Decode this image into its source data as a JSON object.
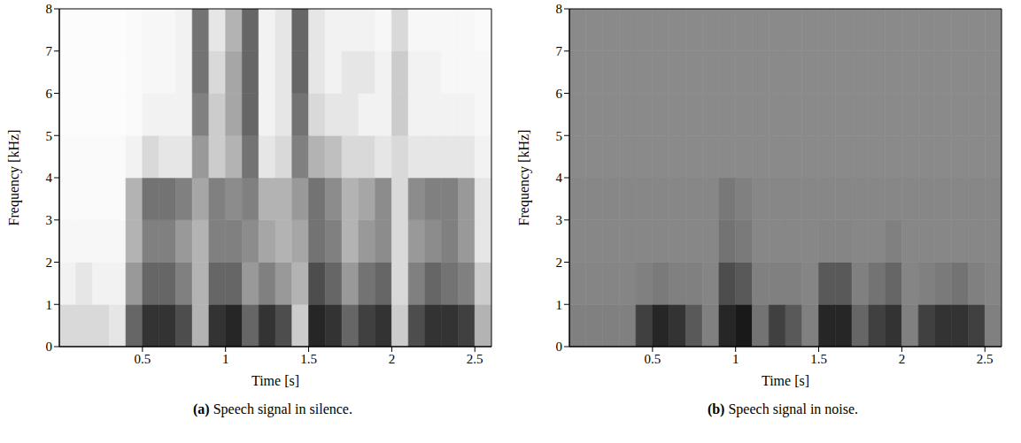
{
  "chart_data": [
    {
      "type": "heatmap",
      "label": "(a)",
      "title": "Speech signal in silence.",
      "x_label": "Time [s]",
      "y_label": "Frequency [kHz]",
      "xlim": [
        0,
        2.6
      ],
      "ylim": [
        0,
        8
      ],
      "xticks": [
        0.5,
        1,
        1.5,
        2,
        2.5
      ],
      "yticks": [
        0,
        1,
        2,
        3,
        4,
        5,
        6,
        7,
        8
      ],
      "x_bins": [
        0,
        0.1,
        0.2,
        0.3,
        0.4,
        0.5,
        0.6,
        0.7,
        0.8,
        0.9,
        1,
        1.1,
        1.2,
        1.3,
        1.4,
        1.5,
        1.6,
        1.7,
        1.8,
        1.9,
        2,
        2.1,
        2.2,
        2.3,
        2.4,
        2.5,
        2.6
      ],
      "y_bins": [
        0,
        1,
        2,
        3,
        4,
        5,
        6,
        7,
        8
      ],
      "cell_range": [
        0,
        1
      ],
      "color": "gray",
      "cells": [
        [
          0.15,
          0.15,
          0.15,
          0.1,
          0.6,
          0.8,
          0.8,
          0.7,
          0.3,
          0.8,
          0.85,
          0.6,
          0.8,
          0.7,
          0.2,
          0.85,
          0.8,
          0.6,
          0.75,
          0.8,
          0.2,
          0.7,
          0.8,
          0.8,
          0.75,
          0.3
        ],
        [
          0.05,
          0.1,
          0.05,
          0.05,
          0.4,
          0.6,
          0.6,
          0.5,
          0.3,
          0.6,
          0.6,
          0.4,
          0.5,
          0.4,
          0.3,
          0.7,
          0.6,
          0.4,
          0.55,
          0.6,
          0.15,
          0.5,
          0.6,
          0.55,
          0.5,
          0.2
        ],
        [
          0.03,
          0.03,
          0.03,
          0.03,
          0.3,
          0.5,
          0.5,
          0.4,
          0.3,
          0.5,
          0.5,
          0.45,
          0.35,
          0.3,
          0.35,
          0.55,
          0.5,
          0.3,
          0.4,
          0.45,
          0.15,
          0.4,
          0.45,
          0.5,
          0.4,
          0.1
        ],
        [
          0.02,
          0.02,
          0.02,
          0.02,
          0.3,
          0.55,
          0.55,
          0.5,
          0.35,
          0.5,
          0.45,
          0.5,
          0.3,
          0.3,
          0.4,
          0.55,
          0.45,
          0.3,
          0.35,
          0.45,
          0.15,
          0.45,
          0.5,
          0.5,
          0.4,
          0.1
        ],
        [
          0.02,
          0.02,
          0.02,
          0.02,
          0.05,
          0.15,
          0.1,
          0.1,
          0.4,
          0.2,
          0.3,
          0.55,
          0.1,
          0.15,
          0.5,
          0.3,
          0.25,
          0.15,
          0.15,
          0.1,
          0.15,
          0.1,
          0.1,
          0.1,
          0.1,
          0.05
        ],
        [
          0.01,
          0.01,
          0.01,
          0.01,
          0.02,
          0.05,
          0.05,
          0.05,
          0.5,
          0.2,
          0.35,
          0.6,
          0.05,
          0.1,
          0.55,
          0.15,
          0.1,
          0.1,
          0.05,
          0.05,
          0.2,
          0.05,
          0.05,
          0.05,
          0.05,
          0.03
        ],
        [
          0.01,
          0.01,
          0.01,
          0.01,
          0.02,
          0.03,
          0.03,
          0.05,
          0.55,
          0.15,
          0.35,
          0.6,
          0.05,
          0.1,
          0.6,
          0.1,
          0.05,
          0.1,
          0.1,
          0.05,
          0.2,
          0.05,
          0.05,
          0.03,
          0.03,
          0.03
        ],
        [
          0.01,
          0.01,
          0.01,
          0.01,
          0.02,
          0.03,
          0.03,
          0.05,
          0.55,
          0.1,
          0.3,
          0.6,
          0.05,
          0.1,
          0.6,
          0.1,
          0.05,
          0.05,
          0.05,
          0.03,
          0.15,
          0.03,
          0.03,
          0.03,
          0.03,
          0.02
        ]
      ]
    },
    {
      "type": "heatmap",
      "label": "(b)",
      "title": "Speech signal in noise.",
      "x_label": "Time [s]",
      "y_label": "Frequency [kHz]",
      "xlim": [
        0,
        2.6
      ],
      "ylim": [
        0,
        8
      ],
      "xticks": [
        0.5,
        1,
        1.5,
        2,
        2.5
      ],
      "yticks": [
        0,
        1,
        2,
        3,
        4,
        5,
        6,
        7,
        8
      ],
      "x_bins": [
        0,
        0.1,
        0.2,
        0.3,
        0.4,
        0.5,
        0.6,
        0.7,
        0.8,
        0.9,
        1,
        1.1,
        1.2,
        1.3,
        1.4,
        1.5,
        1.6,
        1.7,
        1.8,
        1.9,
        2,
        2.1,
        2.2,
        2.3,
        2.4,
        2.5,
        2.6
      ],
      "y_bins": [
        0,
        1,
        2,
        3,
        4,
        5,
        6,
        7,
        8
      ],
      "cell_range": [
        0,
        1
      ],
      "color": "gray",
      "cells": [
        [
          0.5,
          0.5,
          0.5,
          0.5,
          0.75,
          0.85,
          0.8,
          0.65,
          0.5,
          0.85,
          0.9,
          0.55,
          0.75,
          0.65,
          0.5,
          0.85,
          0.85,
          0.6,
          0.75,
          0.8,
          0.5,
          0.75,
          0.8,
          0.8,
          0.75,
          0.5
        ],
        [
          0.48,
          0.48,
          0.48,
          0.48,
          0.5,
          0.52,
          0.5,
          0.5,
          0.48,
          0.7,
          0.65,
          0.5,
          0.5,
          0.5,
          0.48,
          0.65,
          0.65,
          0.5,
          0.55,
          0.6,
          0.48,
          0.5,
          0.52,
          0.55,
          0.5,
          0.48
        ],
        [
          0.47,
          0.47,
          0.47,
          0.47,
          0.47,
          0.47,
          0.47,
          0.47,
          0.47,
          0.55,
          0.52,
          0.47,
          0.47,
          0.47,
          0.47,
          0.48,
          0.48,
          0.47,
          0.47,
          0.5,
          0.47,
          0.47,
          0.47,
          0.47,
          0.47,
          0.47
        ],
        [
          0.47,
          0.47,
          0.47,
          0.47,
          0.47,
          0.47,
          0.47,
          0.47,
          0.47,
          0.53,
          0.5,
          0.47,
          0.47,
          0.47,
          0.47,
          0.47,
          0.47,
          0.47,
          0.47,
          0.47,
          0.47,
          0.47,
          0.47,
          0.47,
          0.47,
          0.47
        ],
        [
          0.46,
          0.46,
          0.46,
          0.46,
          0.46,
          0.46,
          0.46,
          0.46,
          0.46,
          0.46,
          0.46,
          0.46,
          0.46,
          0.46,
          0.46,
          0.46,
          0.46,
          0.46,
          0.46,
          0.46,
          0.46,
          0.46,
          0.46,
          0.46,
          0.46,
          0.46
        ],
        [
          0.46,
          0.46,
          0.46,
          0.46,
          0.46,
          0.46,
          0.46,
          0.46,
          0.46,
          0.46,
          0.46,
          0.46,
          0.46,
          0.46,
          0.46,
          0.46,
          0.46,
          0.46,
          0.46,
          0.46,
          0.46,
          0.46,
          0.46,
          0.46,
          0.46,
          0.46
        ],
        [
          0.46,
          0.46,
          0.46,
          0.46,
          0.46,
          0.46,
          0.46,
          0.46,
          0.46,
          0.46,
          0.46,
          0.46,
          0.46,
          0.46,
          0.46,
          0.46,
          0.46,
          0.46,
          0.46,
          0.46,
          0.46,
          0.46,
          0.46,
          0.46,
          0.46,
          0.46
        ],
        [
          0.46,
          0.46,
          0.46,
          0.46,
          0.46,
          0.46,
          0.46,
          0.46,
          0.46,
          0.46,
          0.46,
          0.46,
          0.46,
          0.46,
          0.46,
          0.46,
          0.46,
          0.46,
          0.46,
          0.46,
          0.46,
          0.46,
          0.46,
          0.46,
          0.46,
          0.46
        ]
      ]
    }
  ]
}
